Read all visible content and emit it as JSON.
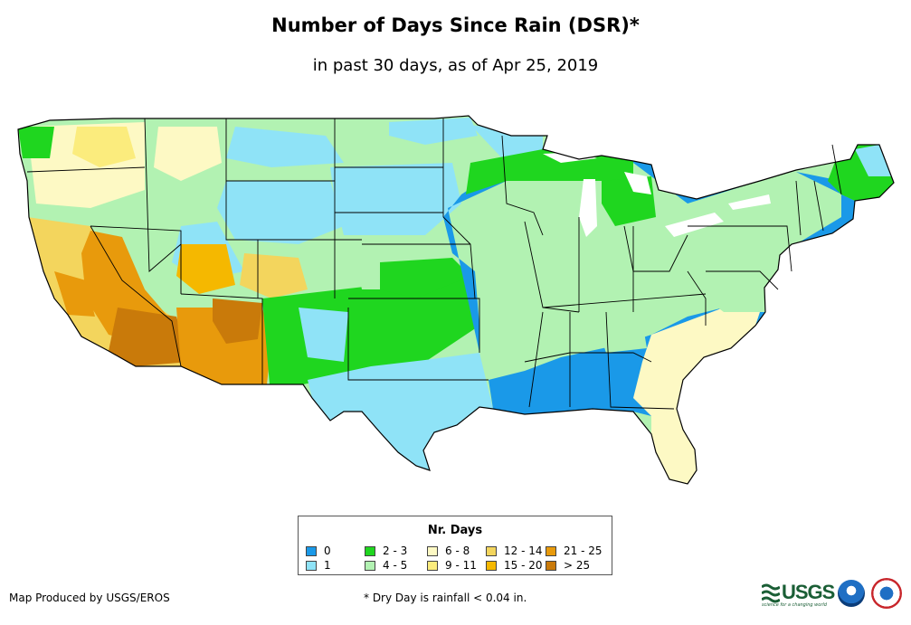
{
  "title": "Number of Days Since Rain (DSR)*",
  "subtitle": "in past 30 days, as of Apr 25, 2019",
  "legend": {
    "title": "Nr. Days",
    "items": [
      {
        "label": "0",
        "color": "#1a99e8"
      },
      {
        "label": "1",
        "color": "#8fe3f7"
      },
      {
        "label": "2 - 3",
        "color": "#1fd61f"
      },
      {
        "label": "4 - 5",
        "color": "#b2f2b2"
      },
      {
        "label": "6 - 8",
        "color": "#fdf9c4"
      },
      {
        "label": "9 - 11",
        "color": "#fbec7d"
      },
      {
        "label": "12 - 14",
        "color": "#f3d55d"
      },
      {
        "label": "15 - 20",
        "color": "#f5b800"
      },
      {
        "label": "21 - 25",
        "color": "#e89a0c"
      },
      {
        "label": "> 25",
        "color": "#c97a0a"
      }
    ]
  },
  "footer": {
    "producer": "Map Produced by USGS/EROS",
    "footnote": "* Dry Day is rainfall < 0.04 in."
  },
  "logos": {
    "usgs": "USGS",
    "usgs_tagline": "science for a changing world"
  }
}
